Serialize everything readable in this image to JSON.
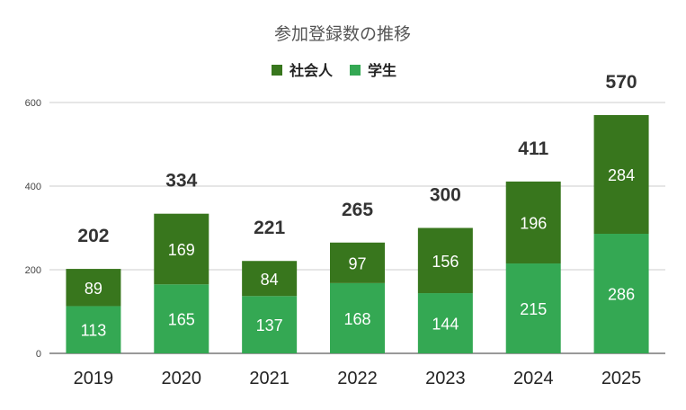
{
  "chart_data": {
    "type": "bar",
    "stacked": true,
    "title": "参加登録数の推移",
    "categories": [
      "2019",
      "2020",
      "2021",
      "2022",
      "2023",
      "2024",
      "2025"
    ],
    "series": [
      {
        "name": "学生",
        "color": "#34a853",
        "values": [
          113,
          165,
          137,
          168,
          144,
          215,
          286
        ]
      },
      {
        "name": "社会人",
        "color": "#38761d",
        "values": [
          89,
          169,
          84,
          97,
          156,
          196,
          284
        ]
      }
    ],
    "totals": [
      202,
      334,
      221,
      265,
      300,
      411,
      570
    ],
    "legend_order": [
      "社会人",
      "学生"
    ],
    "legend_position": "top",
    "ylim": [
      0,
      600
    ],
    "yticks": [
      0,
      200,
      400,
      600
    ],
    "grid": true
  }
}
